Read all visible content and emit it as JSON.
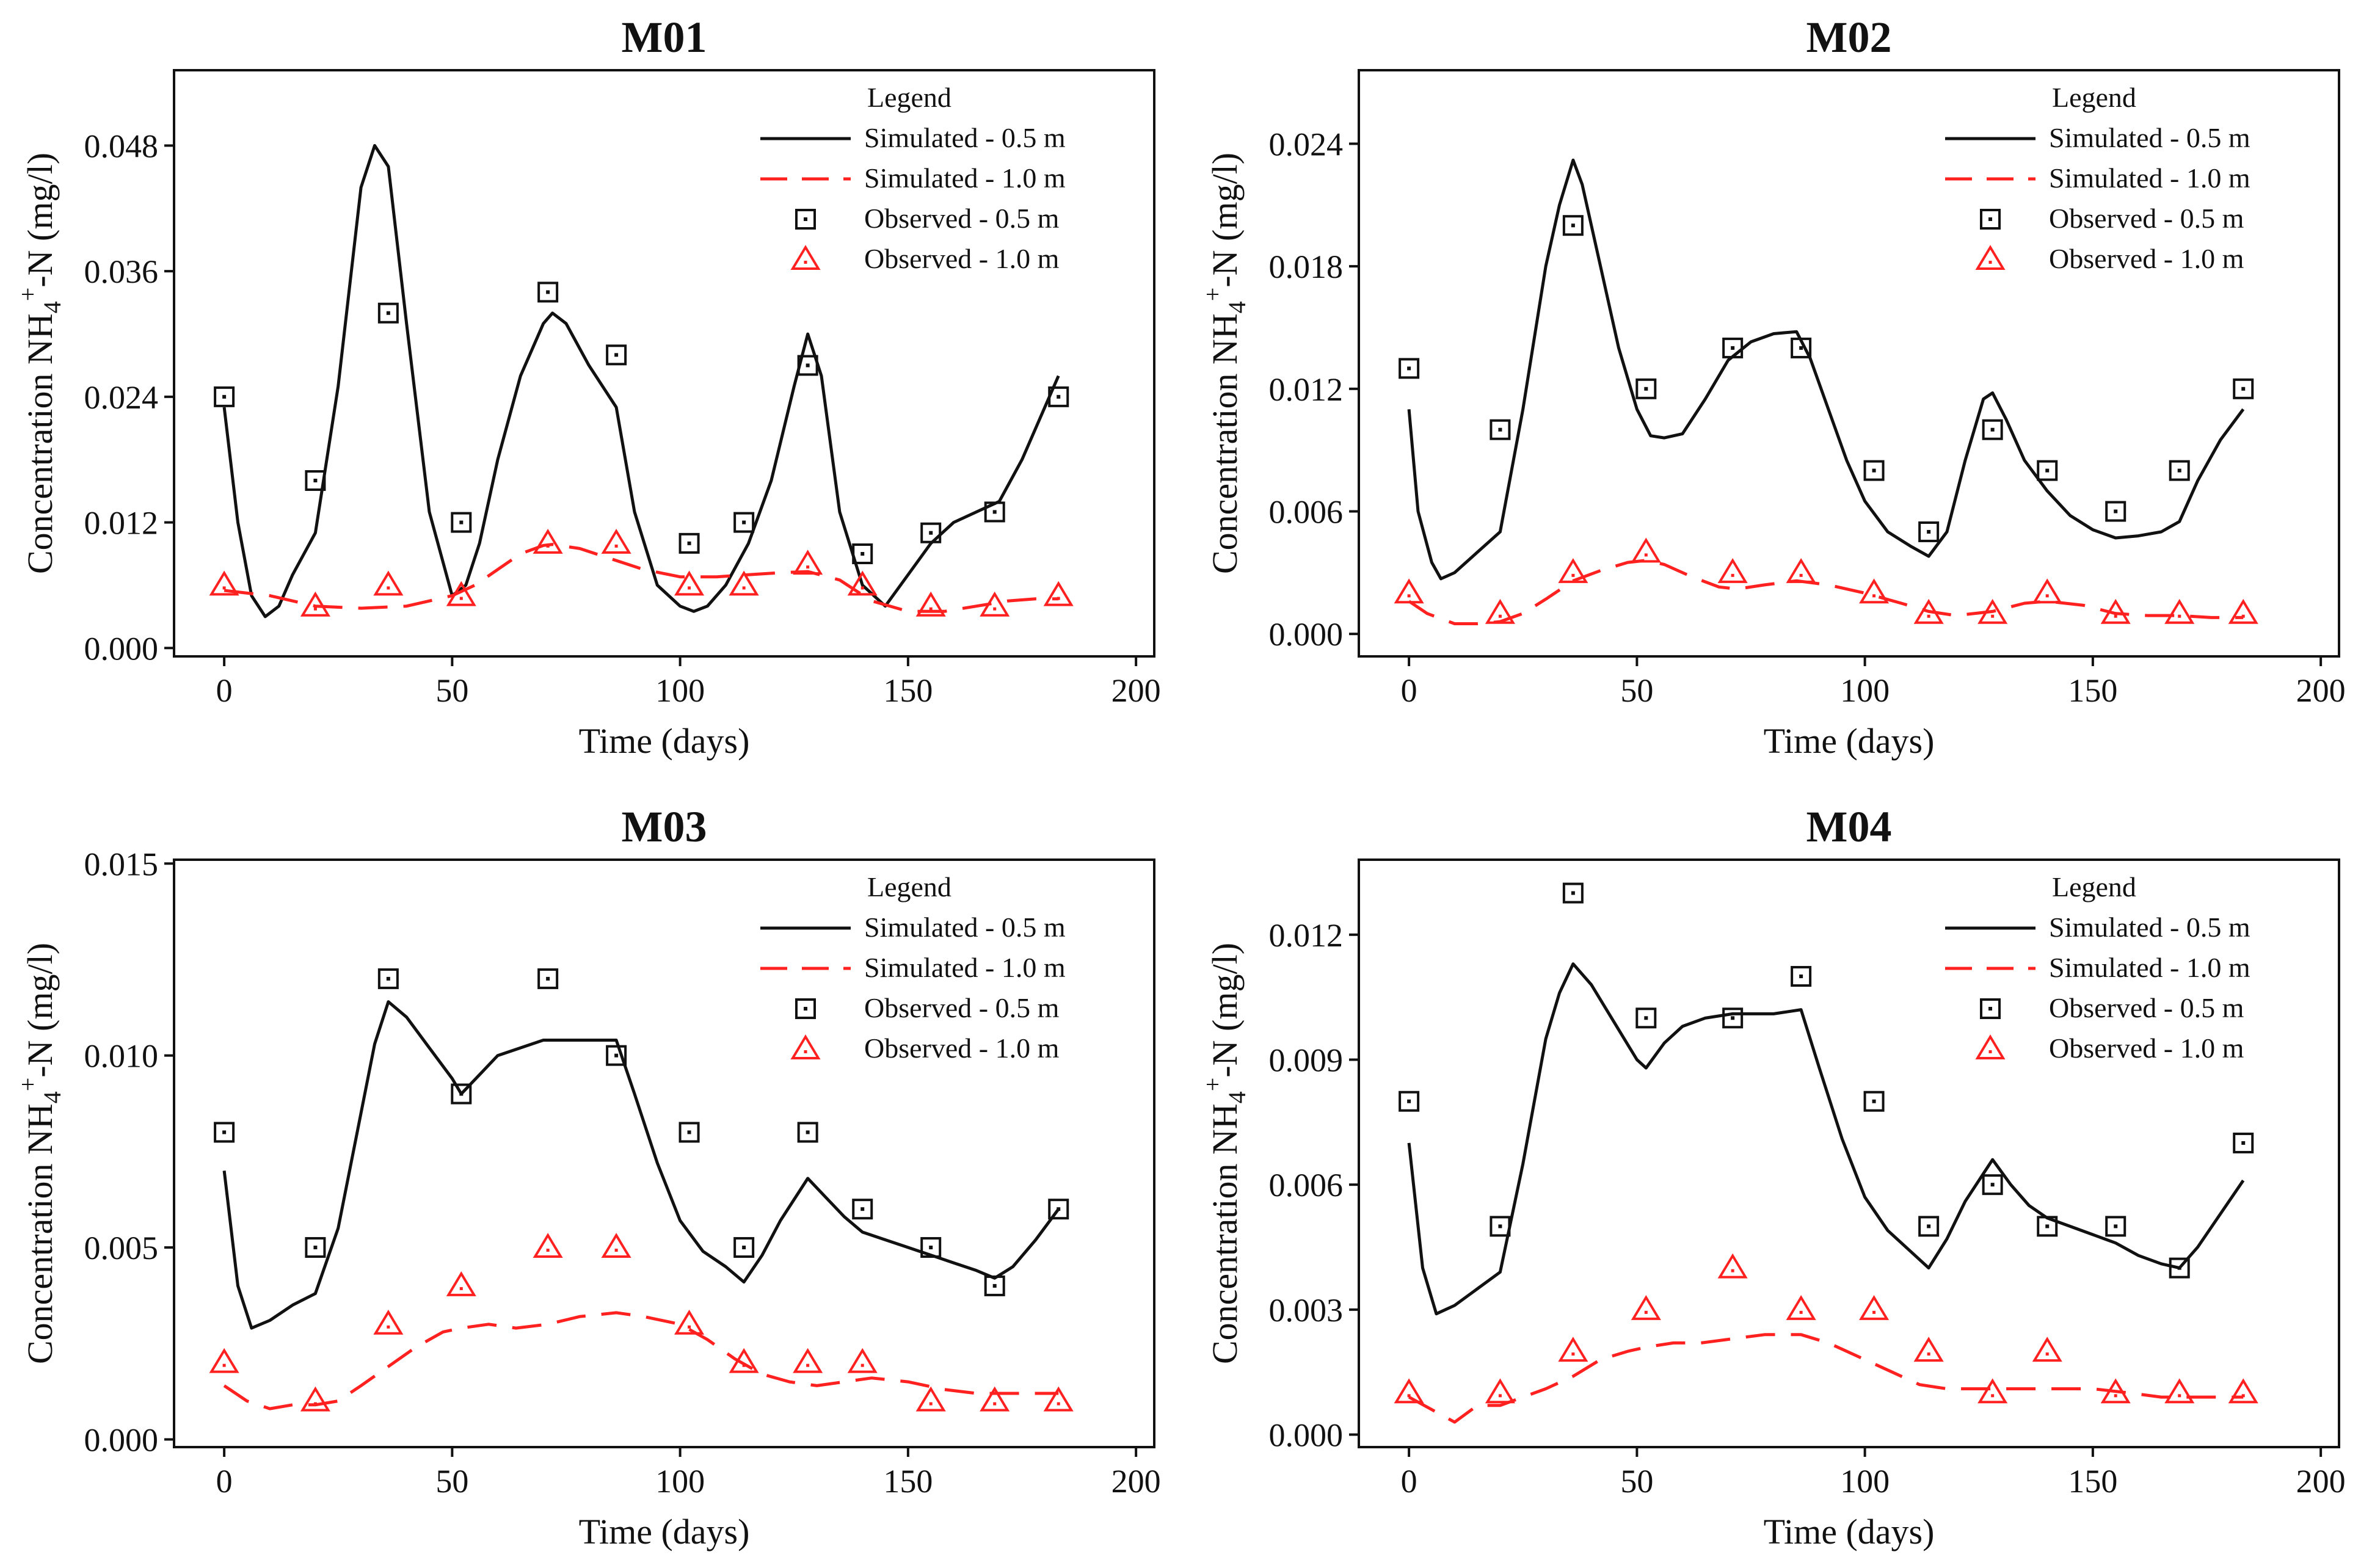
{
  "figure": {
    "legend_title": "Legend",
    "ylabel_main": "Concentration NH",
    "ylabel_sub": "4",
    "ylabel_sup": "+",
    "ylabel_tail": "-N (mg/l)"
  },
  "chart_data": [
    {
      "id": "M01",
      "type": "line",
      "title": "M01",
      "xlabel": "Time (days)",
      "ylabel": "Concentration NH4+-N (mg/l)",
      "xlim": [
        -11,
        204
      ],
      "ylim": [
        -0.0008,
        0.0552
      ],
      "xticks": [
        0,
        50,
        100,
        150,
        200
      ],
      "yticks": [
        0.0,
        0.012,
        0.024,
        0.036,
        0.048
      ],
      "ytick_labels": [
        "0.000",
        "0.012",
        "0.024",
        "0.036",
        "0.048"
      ],
      "legend_position": "top-right",
      "series": [
        {
          "name": "Simulated - 0.5 m",
          "kind": "line",
          "color": "#111111",
          "dashed": false,
          "x": [
            0,
            3,
            6,
            9,
            12,
            15,
            20,
            25,
            30,
            33,
            36,
            40,
            45,
            50,
            53,
            56,
            60,
            65,
            70,
            72,
            75,
            80,
            86,
            90,
            95,
            100,
            103,
            106,
            110,
            115,
            120,
            125,
            128,
            131,
            135,
            140,
            145,
            150,
            155,
            160,
            165,
            170,
            175,
            180,
            183
          ],
          "y": [
            0.023,
            0.012,
            0.005,
            0.003,
            0.004,
            0.007,
            0.011,
            0.025,
            0.044,
            0.048,
            0.046,
            0.031,
            0.013,
            0.005,
            0.006,
            0.01,
            0.018,
            0.026,
            0.031,
            0.032,
            0.031,
            0.027,
            0.023,
            0.013,
            0.006,
            0.004,
            0.0035,
            0.004,
            0.006,
            0.01,
            0.016,
            0.025,
            0.03,
            0.026,
            0.013,
            0.006,
            0.004,
            0.007,
            0.01,
            0.012,
            0.013,
            0.014,
            0.018,
            0.023,
            0.026
          ]
        },
        {
          "name": "Simulated - 1.0 m",
          "kind": "line",
          "color": "#ff2020",
          "dashed": true,
          "x": [
            0,
            10,
            20,
            30,
            40,
            50,
            55,
            60,
            65,
            70,
            72,
            78,
            85,
            92,
            100,
            108,
            115,
            122,
            128,
            135,
            142,
            150,
            158,
            165,
            172,
            178,
            183
          ],
          "y": [
            0.0055,
            0.005,
            0.004,
            0.0038,
            0.004,
            0.005,
            0.006,
            0.0075,
            0.009,
            0.0098,
            0.0099,
            0.0095,
            0.0085,
            0.0075,
            0.0068,
            0.0068,
            0.007,
            0.0072,
            0.0073,
            0.0065,
            0.0045,
            0.0035,
            0.0035,
            0.004,
            0.0045,
            0.0047,
            0.0047
          ]
        },
        {
          "name": "Observed - 0.5 m",
          "kind": "square",
          "color": "#111111",
          "x": [
            0,
            20,
            36,
            52,
            71,
            86,
            102,
            114,
            128,
            140,
            155,
            169,
            183
          ],
          "y": [
            0.024,
            0.016,
            0.032,
            0.012,
            0.034,
            0.028,
            0.01,
            0.012,
            0.027,
            0.009,
            0.011,
            0.013,
            0.024
          ]
        },
        {
          "name": "Observed - 1.0 m",
          "kind": "triangle",
          "color": "#ff2020",
          "x": [
            0,
            20,
            36,
            52,
            71,
            86,
            102,
            114,
            128,
            140,
            155,
            169,
            183
          ],
          "y": [
            0.006,
            0.004,
            0.006,
            0.005,
            0.01,
            0.01,
            0.006,
            0.006,
            0.008,
            0.006,
            0.004,
            0.004,
            0.005
          ]
        }
      ]
    },
    {
      "id": "M02",
      "type": "line",
      "title": "M02",
      "xlabel": "Time (days)",
      "ylabel": "Concentration NH4+-N (mg/l)",
      "xlim": [
        -11,
        204
      ],
      "ylim": [
        -0.0011,
        0.0276
      ],
      "xticks": [
        0,
        50,
        100,
        150,
        200
      ],
      "yticks": [
        0.0,
        0.006,
        0.012,
        0.018,
        0.024
      ],
      "ytick_labels": [
        "0.000",
        "0.006",
        "0.012",
        "0.018",
        "0.024"
      ],
      "legend_position": "top-right",
      "series": [
        {
          "name": "Simulated - 0.5 m",
          "kind": "line",
          "color": "#111111",
          "dashed": false,
          "x": [
            0,
            2,
            5,
            7,
            10,
            15,
            20,
            25,
            30,
            33,
            36,
            38,
            42,
            46,
            50,
            53,
            56,
            60,
            65,
            70,
            75,
            80,
            85,
            88,
            92,
            96,
            100,
            105,
            110,
            114,
            118,
            122,
            126,
            128,
            131,
            135,
            140,
            145,
            150,
            155,
            160,
            165,
            169,
            173,
            178,
            183
          ],
          "y": [
            0.011,
            0.006,
            0.0035,
            0.0027,
            0.003,
            0.004,
            0.005,
            0.011,
            0.018,
            0.021,
            0.0232,
            0.022,
            0.018,
            0.014,
            0.011,
            0.0097,
            0.0096,
            0.0098,
            0.0115,
            0.0134,
            0.0143,
            0.0147,
            0.0148,
            0.0135,
            0.011,
            0.0085,
            0.0065,
            0.005,
            0.0043,
            0.0038,
            0.005,
            0.0085,
            0.0115,
            0.0118,
            0.0105,
            0.0085,
            0.007,
            0.0058,
            0.0051,
            0.0047,
            0.0048,
            0.005,
            0.0055,
            0.0075,
            0.0095,
            0.011
          ]
        },
        {
          "name": "Simulated - 1.0 m",
          "kind": "line",
          "color": "#ff2020",
          "dashed": true,
          "x": [
            0,
            4,
            10,
            15,
            20,
            25,
            30,
            36,
            42,
            48,
            52,
            56,
            62,
            68,
            72,
            78,
            85,
            92,
            100,
            108,
            114,
            120,
            128,
            135,
            140,
            148,
            155,
            162,
            169,
            176,
            183
          ],
          "y": [
            0.0016,
            0.001,
            0.0005,
            0.0005,
            0.0006,
            0.001,
            0.0017,
            0.0026,
            0.0031,
            0.0035,
            0.0036,
            0.0034,
            0.0028,
            0.0023,
            0.0022,
            0.0024,
            0.0026,
            0.0024,
            0.002,
            0.0015,
            0.0011,
            0.0009,
            0.0011,
            0.0015,
            0.0016,
            0.0014,
            0.001,
            0.0009,
            0.0009,
            0.0008,
            0.0008
          ]
        },
        {
          "name": "Observed - 0.5 m",
          "kind": "square",
          "color": "#111111",
          "x": [
            0,
            20,
            36,
            52,
            71,
            86,
            102,
            114,
            128,
            140,
            155,
            169,
            183
          ],
          "y": [
            0.013,
            0.01,
            0.02,
            0.012,
            0.014,
            0.014,
            0.008,
            0.005,
            0.01,
            0.008,
            0.006,
            0.008,
            0.012
          ]
        },
        {
          "name": "Observed - 1.0 m",
          "kind": "triangle",
          "color": "#ff2020",
          "x": [
            0,
            20,
            36,
            52,
            71,
            86,
            102,
            114,
            128,
            140,
            155,
            169,
            183
          ],
          "y": [
            0.002,
            0.001,
            0.003,
            0.004,
            0.003,
            0.003,
            0.002,
            0.001,
            0.001,
            0.002,
            0.001,
            0.001,
            0.001
          ]
        }
      ]
    },
    {
      "id": "M03",
      "type": "line",
      "title": "M03",
      "xlabel": "Time (days)",
      "ylabel": "Concentration NH4+-N (mg/l)",
      "xlim": [
        -11,
        204
      ],
      "ylim": [
        -0.0002,
        0.0151
      ],
      "xticks": [
        0,
        50,
        100,
        150,
        200
      ],
      "yticks": [
        0.0,
        0.005,
        0.01,
        0.015
      ],
      "ytick_labels": [
        "0.000",
        "0.005",
        "0.010",
        "0.015"
      ],
      "legend_position": "top-right",
      "series": [
        {
          "name": "Simulated - 0.5 m",
          "kind": "line",
          "color": "#111111",
          "dashed": false,
          "x": [
            0,
            3,
            6,
            10,
            15,
            20,
            25,
            30,
            33,
            36,
            40,
            45,
            50,
            52,
            56,
            60,
            65,
            70,
            75,
            80,
            86,
            90,
            95,
            100,
            105,
            110,
            114,
            118,
            122,
            128,
            132,
            136,
            140,
            145,
            150,
            155,
            160,
            165,
            169,
            173,
            178,
            183
          ],
          "y": [
            0.007,
            0.004,
            0.0029,
            0.0031,
            0.0035,
            0.0038,
            0.0055,
            0.0085,
            0.0103,
            0.0114,
            0.011,
            0.0102,
            0.0094,
            0.009,
            0.0095,
            0.01,
            0.0102,
            0.0104,
            0.0104,
            0.0104,
            0.0104,
            0.009,
            0.0072,
            0.0057,
            0.0049,
            0.0045,
            0.0041,
            0.0048,
            0.0057,
            0.0068,
            0.0063,
            0.0058,
            0.0054,
            0.0052,
            0.005,
            0.0048,
            0.0046,
            0.0044,
            0.0042,
            0.0045,
            0.0052,
            0.006
          ]
        },
        {
          "name": "Simulated - 1.0 m",
          "kind": "line",
          "color": "#ff2020",
          "dashed": true,
          "x": [
            0,
            5,
            10,
            15,
            20,
            25,
            30,
            36,
            42,
            48,
            52,
            58,
            64,
            71,
            78,
            86,
            92,
            100,
            106,
            112,
            118,
            124,
            130,
            136,
            142,
            150,
            158,
            165,
            172,
            178,
            183
          ],
          "y": [
            0.0014,
            0.001,
            0.0008,
            0.0009,
            0.0009,
            0.001,
            0.0014,
            0.0019,
            0.0024,
            0.0028,
            0.0029,
            0.003,
            0.0029,
            0.003,
            0.0032,
            0.0033,
            0.0032,
            0.003,
            0.0026,
            0.0021,
            0.0017,
            0.0015,
            0.0014,
            0.0015,
            0.0016,
            0.0015,
            0.0013,
            0.0012,
            0.0012,
            0.0012,
            0.0012
          ]
        },
        {
          "name": "Observed - 0.5 m",
          "kind": "square",
          "color": "#111111",
          "x": [
            0,
            20,
            36,
            52,
            71,
            86,
            102,
            114,
            128,
            140,
            155,
            169,
            183
          ],
          "y": [
            0.008,
            0.005,
            0.012,
            0.009,
            0.012,
            0.01,
            0.008,
            0.005,
            0.008,
            0.006,
            0.005,
            0.004,
            0.006
          ]
        },
        {
          "name": "Observed - 1.0 m",
          "kind": "triangle",
          "color": "#ff2020",
          "x": [
            0,
            20,
            36,
            52,
            71,
            86,
            102,
            114,
            128,
            140,
            155,
            169,
            183
          ],
          "y": [
            0.002,
            0.001,
            0.003,
            0.004,
            0.005,
            0.005,
            0.003,
            0.002,
            0.002,
            0.002,
            0.001,
            0.001,
            0.001
          ]
        }
      ]
    },
    {
      "id": "M04",
      "type": "line",
      "title": "M04",
      "xlabel": "Time (days)",
      "ylabel": "Concentration NH4+-N (mg/l)",
      "xlim": [
        -11,
        204
      ],
      "ylim": [
        -0.0003,
        0.0138
      ],
      "xticks": [
        0,
        50,
        100,
        150,
        200
      ],
      "yticks": [
        0.0,
        0.003,
        0.006,
        0.009,
        0.012
      ],
      "ytick_labels": [
        "0.000",
        "0.003",
        "0.006",
        "0.009",
        "0.012"
      ],
      "legend_position": "top-right",
      "series": [
        {
          "name": "Simulated - 0.5 m",
          "kind": "line",
          "color": "#111111",
          "dashed": false,
          "x": [
            0,
            3,
            6,
            10,
            15,
            20,
            25,
            30,
            33,
            36,
            40,
            45,
            50,
            52,
            56,
            60,
            65,
            71,
            75,
            80,
            86,
            90,
            95,
            100,
            105,
            110,
            114,
            118,
            122,
            128,
            132,
            136,
            140,
            145,
            150,
            155,
            160,
            165,
            169,
            173,
            178,
            183
          ],
          "y": [
            0.007,
            0.004,
            0.0029,
            0.0031,
            0.0035,
            0.0039,
            0.0065,
            0.0095,
            0.0106,
            0.0113,
            0.0108,
            0.0099,
            0.009,
            0.0088,
            0.0094,
            0.0098,
            0.01,
            0.0101,
            0.0101,
            0.0101,
            0.0102,
            0.0088,
            0.0071,
            0.0057,
            0.0049,
            0.0044,
            0.004,
            0.0047,
            0.0056,
            0.0066,
            0.006,
            0.0055,
            0.0052,
            0.005,
            0.0048,
            0.0046,
            0.0043,
            0.0041,
            0.004,
            0.0045,
            0.0053,
            0.0061
          ]
        },
        {
          "name": "Simulated - 1.0 m",
          "kind": "line",
          "color": "#ff2020",
          "dashed": true,
          "x": [
            0,
            5,
            10,
            15,
            20,
            25,
            30,
            36,
            42,
            48,
            52,
            58,
            64,
            71,
            78,
            86,
            92,
            100,
            106,
            112,
            118,
            124,
            130,
            136,
            142,
            150,
            158,
            165,
            172,
            178,
            183
          ],
          "y": [
            0.0009,
            0.0006,
            0.0003,
            0.0007,
            0.0007,
            0.0009,
            0.0011,
            0.0014,
            0.0018,
            0.002,
            0.0021,
            0.0022,
            0.0022,
            0.0023,
            0.0024,
            0.0024,
            0.0022,
            0.0018,
            0.0015,
            0.0012,
            0.0011,
            0.0011,
            0.0011,
            0.0011,
            0.0011,
            0.0011,
            0.001,
            0.0009,
            0.0009,
            0.0009,
            0.0009
          ]
        },
        {
          "name": "Observed - 0.5 m",
          "kind": "square",
          "color": "#111111",
          "x": [
            0,
            20,
            36,
            52,
            71,
            86,
            102,
            114,
            128,
            140,
            155,
            169,
            183
          ],
          "y": [
            0.008,
            0.005,
            0.013,
            0.01,
            0.01,
            0.011,
            0.008,
            0.005,
            0.006,
            0.005,
            0.005,
            0.004,
            0.007
          ]
        },
        {
          "name": "Observed - 1.0 m",
          "kind": "triangle",
          "color": "#ff2020",
          "x": [
            0,
            20,
            36,
            52,
            71,
            86,
            102,
            114,
            128,
            140,
            155,
            169,
            183
          ],
          "y": [
            0.001,
            0.001,
            0.002,
            0.003,
            0.004,
            0.003,
            0.003,
            0.002,
            0.001,
            0.002,
            0.001,
            0.001,
            0.001
          ]
        }
      ]
    }
  ]
}
